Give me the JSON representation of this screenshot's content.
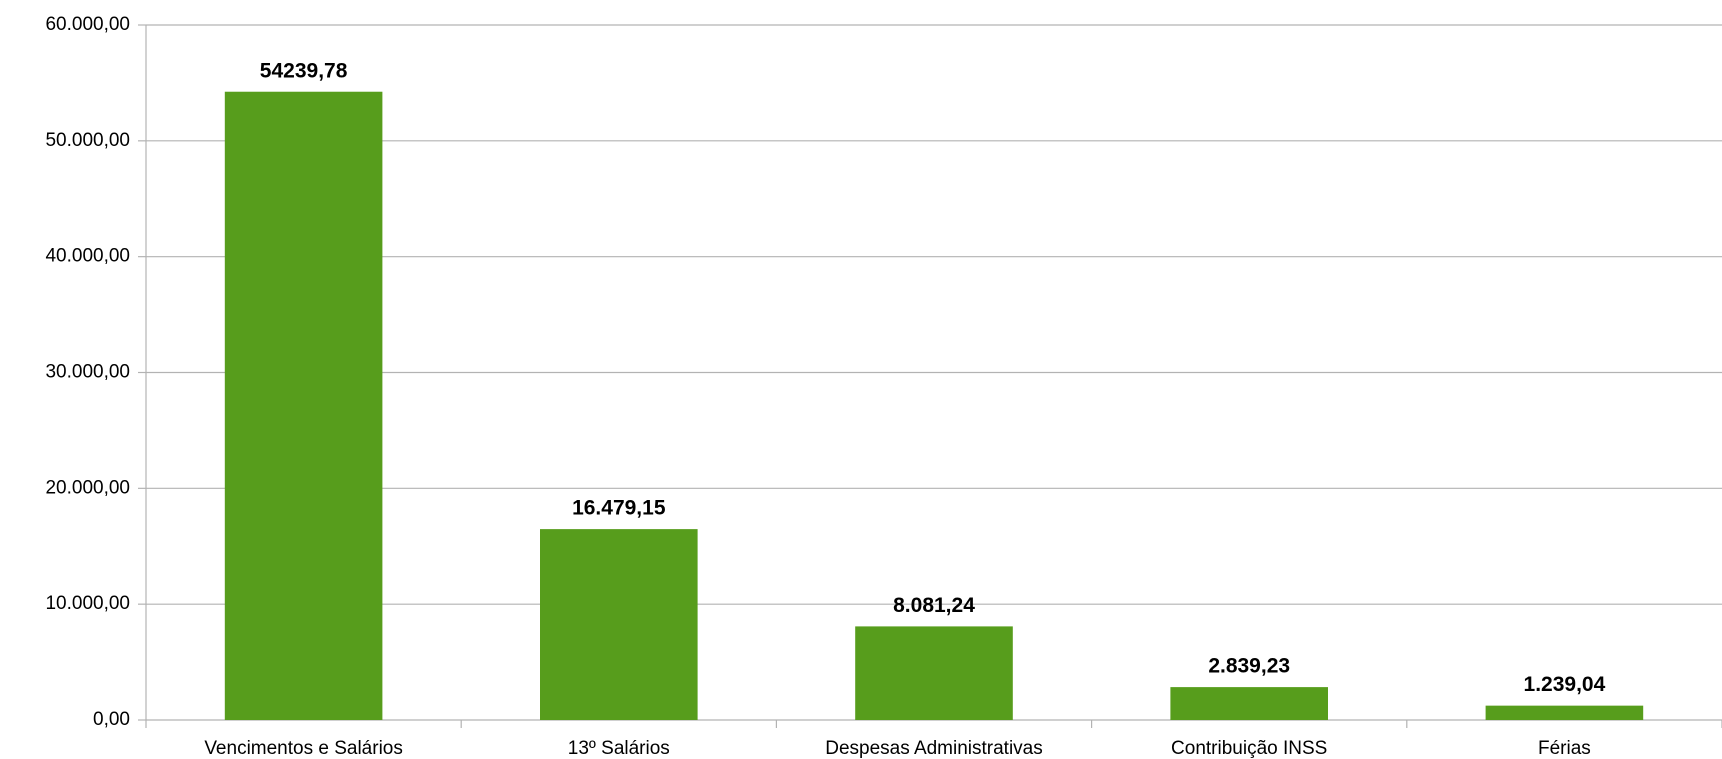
{
  "chart_data": {
    "type": "bar",
    "categories": [
      "Vencimentos e Salários",
      "13º Salários",
      "Despesas Administrativas",
      "Contribuição INSS",
      "Férias"
    ],
    "values": [
      54239.78,
      16479.15,
      8081.24,
      2839.23,
      1239.04
    ],
    "value_labels": [
      "54239,78",
      "16.479,15",
      "8.081,24",
      "2.839,23",
      "1.239,04"
    ],
    "color": "#579d1c",
    "ylim": [
      0,
      60000
    ],
    "yticks": [
      {
        "value": 0,
        "label": "0,00"
      },
      {
        "value": 10000,
        "label": "10.000,00"
      },
      {
        "value": 20000,
        "label": "20.000,00"
      },
      {
        "value": 30000,
        "label": "30.000,00"
      },
      {
        "value": 40000,
        "label": "40.000,00"
      },
      {
        "value": 50000,
        "label": "50.000,00"
      },
      {
        "value": 60000,
        "label": "60.000,00"
      }
    ],
    "grid": true
  }
}
